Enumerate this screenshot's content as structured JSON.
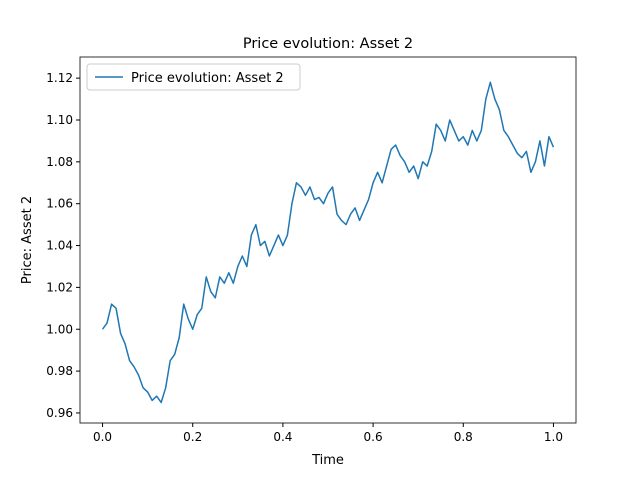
{
  "chart_data": {
    "type": "line",
    "title": "Price evolution: Asset 2",
    "xlabel": "Time",
    "ylabel": "Price: Asset 2",
    "x": [
      0.0,
      0.01,
      0.02,
      0.03,
      0.04,
      0.05,
      0.06,
      0.07,
      0.08,
      0.09,
      0.1,
      0.11,
      0.12,
      0.13,
      0.14,
      0.15,
      0.16,
      0.17,
      0.18,
      0.19,
      0.2,
      0.21,
      0.22,
      0.23,
      0.24,
      0.25,
      0.26,
      0.27,
      0.28,
      0.29,
      0.3,
      0.31,
      0.32,
      0.33,
      0.34,
      0.35,
      0.36,
      0.37,
      0.38,
      0.39,
      0.4,
      0.41,
      0.42,
      0.43,
      0.44,
      0.45,
      0.46,
      0.47,
      0.48,
      0.49,
      0.5,
      0.51,
      0.52,
      0.53,
      0.54,
      0.55,
      0.56,
      0.57,
      0.58,
      0.59,
      0.6,
      0.61,
      0.62,
      0.63,
      0.64,
      0.65,
      0.66,
      0.67,
      0.68,
      0.69,
      0.7,
      0.71,
      0.72,
      0.73,
      0.74,
      0.75,
      0.76,
      0.77,
      0.78,
      0.79,
      0.8,
      0.81,
      0.82,
      0.83,
      0.84,
      0.85,
      0.86,
      0.87,
      0.88,
      0.89,
      0.9,
      0.91,
      0.92,
      0.93,
      0.94,
      0.95,
      0.96,
      0.97,
      0.98,
      0.99,
      1.0
    ],
    "series": [
      {
        "name": "Price evolution: Asset 2",
        "color": "#1f77b4",
        "values": [
          1.0,
          1.003,
          1.012,
          1.01,
          0.998,
          0.993,
          0.985,
          0.982,
          0.978,
          0.972,
          0.97,
          0.966,
          0.968,
          0.965,
          0.972,
          0.985,
          0.988,
          0.996,
          1.012,
          1.005,
          1.0,
          1.007,
          1.01,
          1.025,
          1.018,
          1.015,
          1.025,
          1.022,
          1.027,
          1.022,
          1.03,
          1.035,
          1.03,
          1.045,
          1.05,
          1.04,
          1.042,
          1.035,
          1.04,
          1.045,
          1.04,
          1.045,
          1.06,
          1.07,
          1.068,
          1.064,
          1.068,
          1.062,
          1.063,
          1.06,
          1.065,
          1.068,
          1.055,
          1.052,
          1.05,
          1.055,
          1.058,
          1.052,
          1.057,
          1.062,
          1.07,
          1.075,
          1.07,
          1.078,
          1.086,
          1.088,
          1.083,
          1.08,
          1.075,
          1.078,
          1.072,
          1.08,
          1.078,
          1.085,
          1.098,
          1.095,
          1.09,
          1.1,
          1.095,
          1.09,
          1.092,
          1.088,
          1.095,
          1.09,
          1.095,
          1.11,
          1.118,
          1.11,
          1.105,
          1.095,
          1.092,
          1.088,
          1.084,
          1.082,
          1.085,
          1.075,
          1.08,
          1.09,
          1.078,
          1.092,
          1.087
        ]
      }
    ],
    "xlim": [
      -0.05,
      1.05
    ],
    "xticks": [
      {
        "value": 0.0,
        "label": "0.0"
      },
      0.2,
      0.4,
      0.6,
      0.8,
      {
        "value": 1.0,
        "label": "1.0"
      }
    ],
    "ylim": [
      0.9552,
      1.1301
    ],
    "yticks": [
      0.96,
      0.98,
      {
        "value": 1.0,
        "label": "1.00"
      },
      1.02,
      1.04,
      1.06,
      1.08,
      {
        "value": 1.1,
        "label": "1.10"
      },
      1.12
    ],
    "legend": "upper left"
  }
}
